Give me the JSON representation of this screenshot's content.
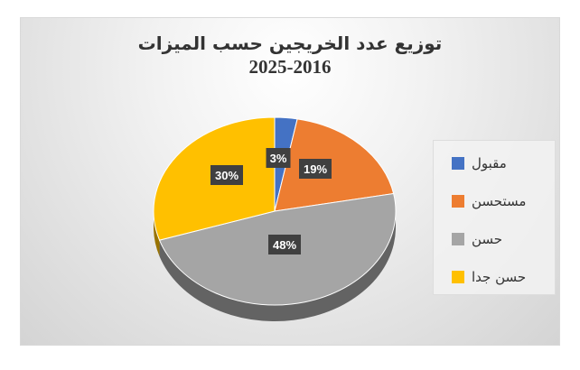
{
  "chart_data": {
    "type": "pie",
    "style": "3d",
    "title": "توزيع عدد الخريجين حسب الميزات",
    "subtitle": "2025-2016",
    "categories": [
      "مقبول",
      "مستحسن",
      "حسن",
      "حسن جدا"
    ],
    "values": [
      3,
      19,
      48,
      30
    ],
    "labels": [
      "3%",
      "19%",
      "48%",
      "30%"
    ],
    "colors": [
      "#4472c4",
      "#ed7d31",
      "#a5a5a5",
      "#ffc000"
    ],
    "legend_position": "right"
  }
}
